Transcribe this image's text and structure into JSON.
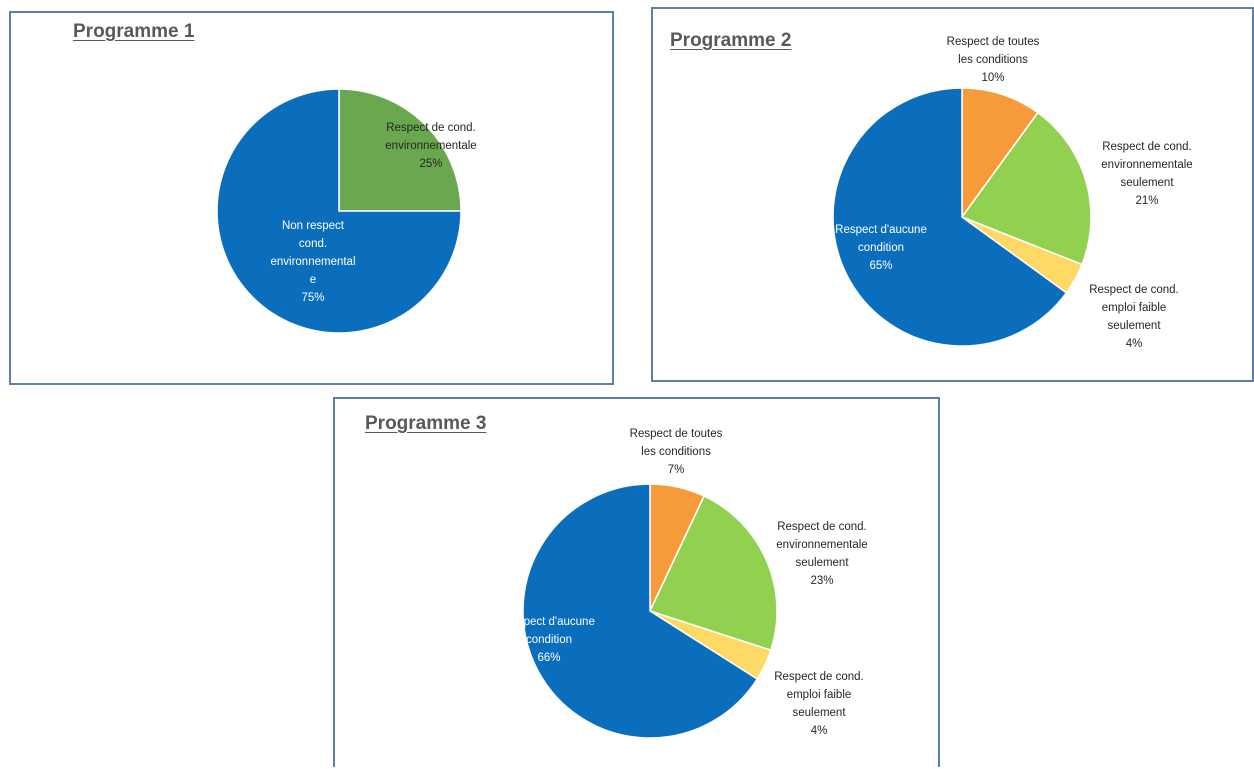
{
  "chart_data": [
    {
      "type": "pie",
      "title": "Programme 1",
      "slices": [
        {
          "label": [
            "Respect de cond.",
            "environnementale"
          ],
          "value": 25,
          "value_label": "25%",
          "color": "#6aa84f",
          "text_color": "#262626"
        },
        {
          "label": [
            "Non respect",
            "cond.",
            "environnemental",
            "e"
          ],
          "value": 75,
          "value_label": "75%",
          "color": "#0a6ebd",
          "text_color": "#ffffff"
        }
      ]
    },
    {
      "type": "pie",
      "title": "Programme 2",
      "slices": [
        {
          "label": [
            "Respect de toutes",
            "les conditions"
          ],
          "value": 10,
          "value_label": "10%",
          "color": "#f79a3a",
          "text_color": "#262626"
        },
        {
          "label": [
            "Respect de cond.",
            "environnementale",
            "seulement"
          ],
          "value": 21,
          "value_label": "21%",
          "color": "#92d050",
          "text_color": "#262626"
        },
        {
          "label": [
            "Respect de cond.",
            "emploi faible",
            "seulement"
          ],
          "value": 4,
          "value_label": "4%",
          "color": "#ffd966",
          "text_color": "#262626"
        },
        {
          "label": [
            "Respect d'aucune",
            "condition"
          ],
          "value": 65,
          "value_label": "65%",
          "color": "#0a6ebd",
          "text_color": "#ffffff"
        }
      ]
    },
    {
      "type": "pie",
      "title": "Programme 3",
      "slices": [
        {
          "label": [
            "Respect de toutes",
            "les conditions"
          ],
          "value": 7,
          "value_label": "7%",
          "color": "#f79a3a",
          "text_color": "#262626"
        },
        {
          "label": [
            "Respect de cond.",
            "environnementale",
            "seulement"
          ],
          "value": 23,
          "value_label": "23%",
          "color": "#92d050",
          "text_color": "#262626"
        },
        {
          "label": [
            "Respect de cond.",
            "emploi faible",
            "seulement"
          ],
          "value": 4,
          "value_label": "4%",
          "color": "#ffd966",
          "text_color": "#262626"
        },
        {
          "label": [
            "Respect d'aucune",
            "condition"
          ],
          "value": 66,
          "value_label": "66%",
          "color": "#0a6ebd",
          "text_color": "#ffffff"
        }
      ]
    }
  ]
}
